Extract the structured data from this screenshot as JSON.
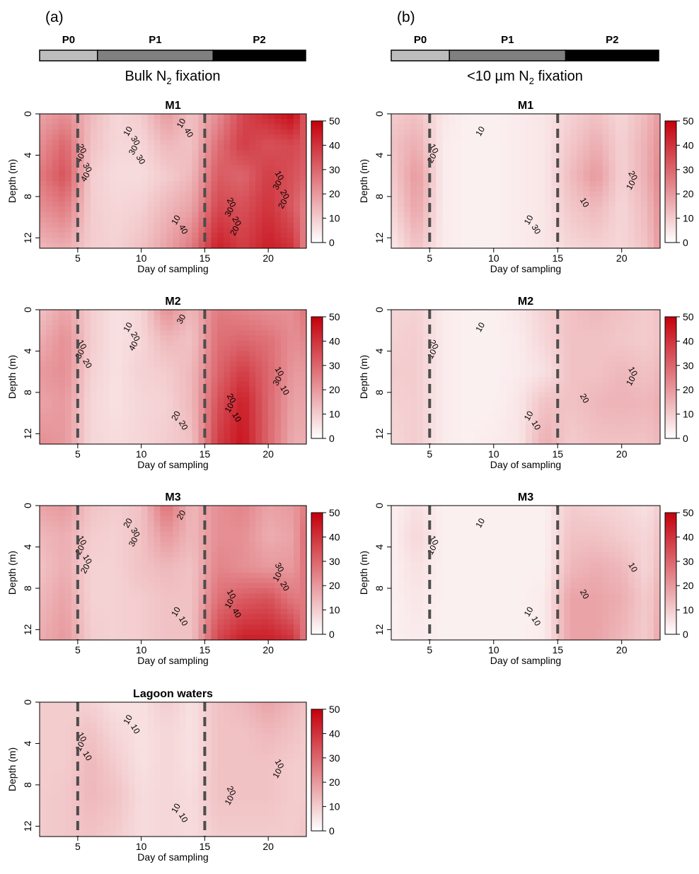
{
  "figure": {
    "columns": [
      {
        "id": "a",
        "letter": "(a)",
        "phases": [
          {
            "label": "P0",
            "start": 0,
            "end": 5,
            "color": "#bdbdbd"
          },
          {
            "label": "P1",
            "start": 5,
            "end": 15,
            "color": "#808080"
          },
          {
            "label": "P2",
            "start": 15,
            "end": 23,
            "color": "#000000"
          }
        ],
        "subtitle_main": "Bulk N",
        "subtitle_sub": "2",
        "subtitle_rest": " fixation"
      },
      {
        "id": "b",
        "letter": "(b)",
        "phases": [
          {
            "label": "P0",
            "start": 0,
            "end": 5,
            "color": "#bdbdbd"
          },
          {
            "label": "P1",
            "start": 5,
            "end": 15,
            "color": "#808080"
          },
          {
            "label": "P2",
            "start": 15,
            "end": 23,
            "color": "#000000"
          }
        ],
        "subtitle_main": "<10 µm N",
        "subtitle_sub": "2",
        "subtitle_rest": " fixation"
      }
    ]
  },
  "chart_data": [
    {
      "type": "heatmap",
      "column": "a",
      "title": "M1",
      "xlabel": "Day of sampling",
      "ylabel": "Depth (m)",
      "xlim": [
        2,
        23
      ],
      "ylim": [
        13,
        0
      ],
      "xticks": [
        5,
        10,
        15,
        20
      ],
      "yticks": [
        0,
        4,
        8,
        12
      ],
      "phase_boundaries": [
        5,
        15
      ],
      "colorbar": {
        "min": 0,
        "max": 50,
        "ticks": [
          0,
          10,
          20,
          30,
          40,
          50
        ]
      },
      "x_days": [
        2,
        4,
        6,
        8,
        10,
        12,
        14,
        16,
        18,
        20,
        22,
        23
      ],
      "y_depths": [
        0,
        3,
        6,
        9,
        13
      ],
      "values": [
        [
          18,
          22,
          14,
          8,
          10,
          20,
          12,
          22,
          36,
          42,
          48,
          30
        ],
        [
          22,
          30,
          12,
          8,
          8,
          14,
          12,
          28,
          38,
          34,
          36,
          32
        ],
        [
          26,
          34,
          10,
          7,
          7,
          10,
          14,
          32,
          30,
          38,
          34,
          30
        ],
        [
          22,
          26,
          10,
          8,
          9,
          14,
          18,
          36,
          34,
          40,
          32,
          24
        ],
        [
          14,
          16,
          10,
          9,
          12,
          18,
          26,
          44,
          38,
          44,
          40,
          22
        ]
      ],
      "contour_labels": [
        "20",
        "10",
        "10",
        "10",
        "20",
        "40",
        "40",
        "30",
        "30",
        "30",
        "30",
        "10",
        "20",
        "30",
        "20",
        "40",
        "40",
        "20",
        "30",
        "20"
      ]
    },
    {
      "type": "heatmap",
      "column": "b",
      "title": "M1",
      "xlabel": "Day of sampling",
      "ylabel": "Depth (m)",
      "xlim": [
        2,
        23
      ],
      "ylim": [
        13,
        0
      ],
      "xticks": [
        5,
        10,
        15,
        20
      ],
      "yticks": [
        0,
        4,
        8,
        12
      ],
      "phase_boundaries": [
        5,
        15
      ],
      "colorbar": {
        "min": 0,
        "max": 50,
        "ticks": [
          0,
          10,
          20,
          30,
          40,
          50
        ]
      },
      "x_days": [
        2,
        4,
        6,
        8,
        10,
        12,
        14,
        16,
        18,
        20,
        22,
        23
      ],
      "y_depths": [
        0,
        3,
        6,
        9,
        13
      ],
      "values": [
        [
          10,
          12,
          5,
          3,
          3,
          4,
          5,
          9,
          12,
          8,
          14,
          20
        ],
        [
          12,
          16,
          4,
          3,
          3,
          4,
          5,
          11,
          16,
          9,
          16,
          22
        ],
        [
          10,
          20,
          4,
          3,
          3,
          4,
          5,
          13,
          20,
          9,
          16,
          24
        ],
        [
          8,
          18,
          4,
          3,
          3,
          4,
          5,
          11,
          14,
          8,
          14,
          22
        ],
        [
          4,
          12,
          4,
          3,
          3,
          4,
          5,
          8,
          9,
          8,
          12,
          20
        ]
      ],
      "contour_labels": [
        "10",
        "10",
        "20",
        "10",
        "10",
        "20",
        "30",
        "10"
      ]
    },
    {
      "type": "heatmap",
      "column": "a",
      "title": "M2",
      "xlabel": "Day of sampling",
      "ylabel": "Depth (m)",
      "xlim": [
        2,
        23
      ],
      "ylim": [
        13,
        0
      ],
      "xticks": [
        5,
        10,
        15,
        20
      ],
      "yticks": [
        0,
        4,
        8,
        12
      ],
      "phase_boundaries": [
        5,
        15
      ],
      "colorbar": {
        "min": 0,
        "max": 50,
        "ticks": [
          0,
          10,
          20,
          30,
          40,
          50
        ]
      },
      "x_days": [
        2,
        4,
        6,
        8,
        10,
        12,
        14,
        16,
        18,
        20,
        22,
        23
      ],
      "y_depths": [
        0,
        3,
        6,
        9,
        13
      ],
      "values": [
        [
          12,
          18,
          10,
          6,
          8,
          22,
          14,
          26,
          24,
          22,
          22,
          28
        ],
        [
          16,
          22,
          10,
          6,
          8,
          14,
          12,
          28,
          30,
          28,
          22,
          24
        ],
        [
          20,
          22,
          9,
          6,
          9,
          10,
          14,
          30,
          38,
          30,
          20,
          20
        ],
        [
          18,
          20,
          8,
          6,
          8,
          9,
          14,
          34,
          44,
          30,
          18,
          18
        ],
        [
          22,
          20,
          8,
          7,
          8,
          10,
          12,
          38,
          46,
          30,
          16,
          16
        ]
      ],
      "contour_labels": [
        "10",
        "20",
        "10",
        "10",
        "20",
        "30",
        "20",
        "30",
        "20",
        "10",
        "20",
        "30",
        "10",
        "40",
        "10"
      ]
    },
    {
      "type": "heatmap",
      "column": "b",
      "title": "M2",
      "xlabel": "Day of sampling",
      "ylabel": "Depth (m)",
      "xlim": [
        2,
        23
      ],
      "ylim": [
        13,
        0
      ],
      "xticks": [
        5,
        10,
        15,
        20
      ],
      "yticks": [
        0,
        4,
        8,
        12
      ],
      "phase_boundaries": [
        5,
        15
      ],
      "colorbar": {
        "min": 0,
        "max": 50,
        "ticks": [
          0,
          10,
          20,
          30,
          40,
          50
        ]
      },
      "x_days": [
        2,
        4,
        6,
        8,
        10,
        12,
        14,
        16,
        18,
        20,
        22,
        23
      ],
      "y_depths": [
        0,
        3,
        6,
        9,
        13
      ],
      "values": [
        [
          8,
          9,
          4,
          3,
          3,
          5,
          9,
          12,
          14,
          12,
          10,
          12
        ],
        [
          9,
          10,
          4,
          3,
          3,
          4,
          8,
          12,
          12,
          11,
          10,
          12
        ],
        [
          10,
          10,
          4,
          3,
          3,
          4,
          6,
          12,
          12,
          14,
          12,
          14
        ],
        [
          9,
          10,
          4,
          3,
          3,
          5,
          12,
          12,
          14,
          15,
          14,
          16
        ],
        [
          8,
          10,
          4,
          3,
          4,
          5,
          16,
          10,
          12,
          12,
          12,
          14
        ]
      ],
      "contour_labels": [
        "20",
        "10",
        "10",
        "10",
        "20",
        "10",
        "10",
        "10"
      ]
    },
    {
      "type": "heatmap",
      "column": "a",
      "title": "M3",
      "xlabel": "Day of sampling",
      "ylabel": "Depth (m)",
      "xlim": [
        2,
        23
      ],
      "ylim": [
        13,
        0
      ],
      "xticks": [
        5,
        10,
        15,
        20
      ],
      "yticks": [
        0,
        4,
        8,
        12
      ],
      "phase_boundaries": [
        5,
        15
      ],
      "colorbar": {
        "min": 0,
        "max": 50,
        "ticks": [
          0,
          10,
          20,
          30,
          40,
          50
        ]
      },
      "x_days": [
        2,
        4,
        6,
        8,
        10,
        12,
        14,
        16,
        18,
        20,
        22,
        23
      ],
      "y_depths": [
        0,
        3,
        6,
        9,
        13
      ],
      "values": [
        [
          18,
          20,
          12,
          10,
          12,
          28,
          14,
          22,
          24,
          18,
          20,
          26
        ],
        [
          14,
          16,
          10,
          9,
          12,
          20,
          14,
          22,
          22,
          16,
          18,
          30
        ],
        [
          12,
          16,
          9,
          9,
          12,
          14,
          12,
          24,
          22,
          20,
          20,
          28
        ],
        [
          14,
          18,
          9,
          9,
          10,
          12,
          12,
          28,
          32,
          34,
          26,
          26
        ],
        [
          16,
          20,
          10,
          9,
          10,
          12,
          12,
          36,
          44,
          44,
          40,
          24
        ]
      ],
      "contour_labels": [
        "10",
        "10",
        "30",
        "20",
        "10",
        "20",
        "10",
        "10",
        "30",
        "10",
        "10",
        "20",
        "20",
        "30",
        "40",
        "20"
      ]
    },
    {
      "type": "heatmap",
      "column": "b",
      "title": "M3",
      "xlabel": "Day of sampling",
      "ylabel": "Depth (m)",
      "xlim": [
        2,
        23
      ],
      "ylim": [
        13,
        0
      ],
      "xticks": [
        5,
        10,
        15,
        20
      ],
      "yticks": [
        0,
        4,
        8,
        12
      ],
      "phase_boundaries": [
        5,
        15
      ],
      "colorbar": {
        "min": 0,
        "max": 50,
        "ticks": [
          0,
          10,
          20,
          30,
          40,
          50
        ]
      },
      "x_days": [
        2,
        4,
        6,
        8,
        10,
        12,
        14,
        16,
        18,
        20,
        22,
        23
      ],
      "y_depths": [
        0,
        3,
        6,
        9,
        13
      ],
      "values": [
        [
          3,
          6,
          3,
          3,
          3,
          3,
          3,
          10,
          9,
          8,
          6,
          10
        ],
        [
          3,
          8,
          3,
          3,
          3,
          3,
          3,
          12,
          12,
          10,
          8,
          12
        ],
        [
          3,
          6,
          3,
          3,
          3,
          3,
          3,
          14,
          16,
          14,
          8,
          14
        ],
        [
          3,
          5,
          3,
          3,
          3,
          3,
          4,
          18,
          18,
          16,
          10,
          16
        ],
        [
          3,
          4,
          3,
          3,
          3,
          3,
          4,
          18,
          18,
          14,
          10,
          18
        ]
      ],
      "contour_labels": [
        "10",
        "10",
        "10",
        "10",
        "20",
        "10",
        "10"
      ]
    },
    {
      "type": "heatmap",
      "column": "a",
      "title": "Lagoon waters",
      "xlabel": "Day of sampling",
      "ylabel": "Depth (m)",
      "xlim": [
        2,
        23
      ],
      "ylim": [
        13,
        0
      ],
      "xticks": [
        5,
        10,
        15,
        20
      ],
      "yticks": [
        0,
        4,
        8,
        12
      ],
      "phase_boundaries": [
        5,
        15
      ],
      "colorbar": {
        "min": 0,
        "max": 50,
        "ticks": [
          0,
          10,
          20,
          30,
          40,
          50
        ]
      },
      "x_days": [
        2,
        4,
        6,
        8,
        10,
        12,
        14,
        16,
        18,
        20,
        22,
        23
      ],
      "y_depths": [
        0,
        3,
        6,
        9,
        13
      ],
      "values": [
        [
          10,
          10,
          9,
          6,
          6,
          10,
          6,
          12,
          14,
          18,
          14,
          12
        ],
        [
          10,
          10,
          12,
          8,
          6,
          8,
          6,
          12,
          12,
          14,
          12,
          10
        ],
        [
          10,
          10,
          14,
          10,
          6,
          8,
          6,
          12,
          12,
          12,
          10,
          10
        ],
        [
          10,
          11,
          14,
          12,
          7,
          8,
          7,
          12,
          12,
          12,
          10,
          10
        ],
        [
          10,
          11,
          12,
          10,
          7,
          8,
          7,
          10,
          10,
          10,
          10,
          12
        ]
      ],
      "contour_labels": [
        "10",
        "10",
        "10",
        "10",
        "20",
        "10",
        "10",
        "10",
        "10",
        "10",
        "10"
      ]
    }
  ]
}
